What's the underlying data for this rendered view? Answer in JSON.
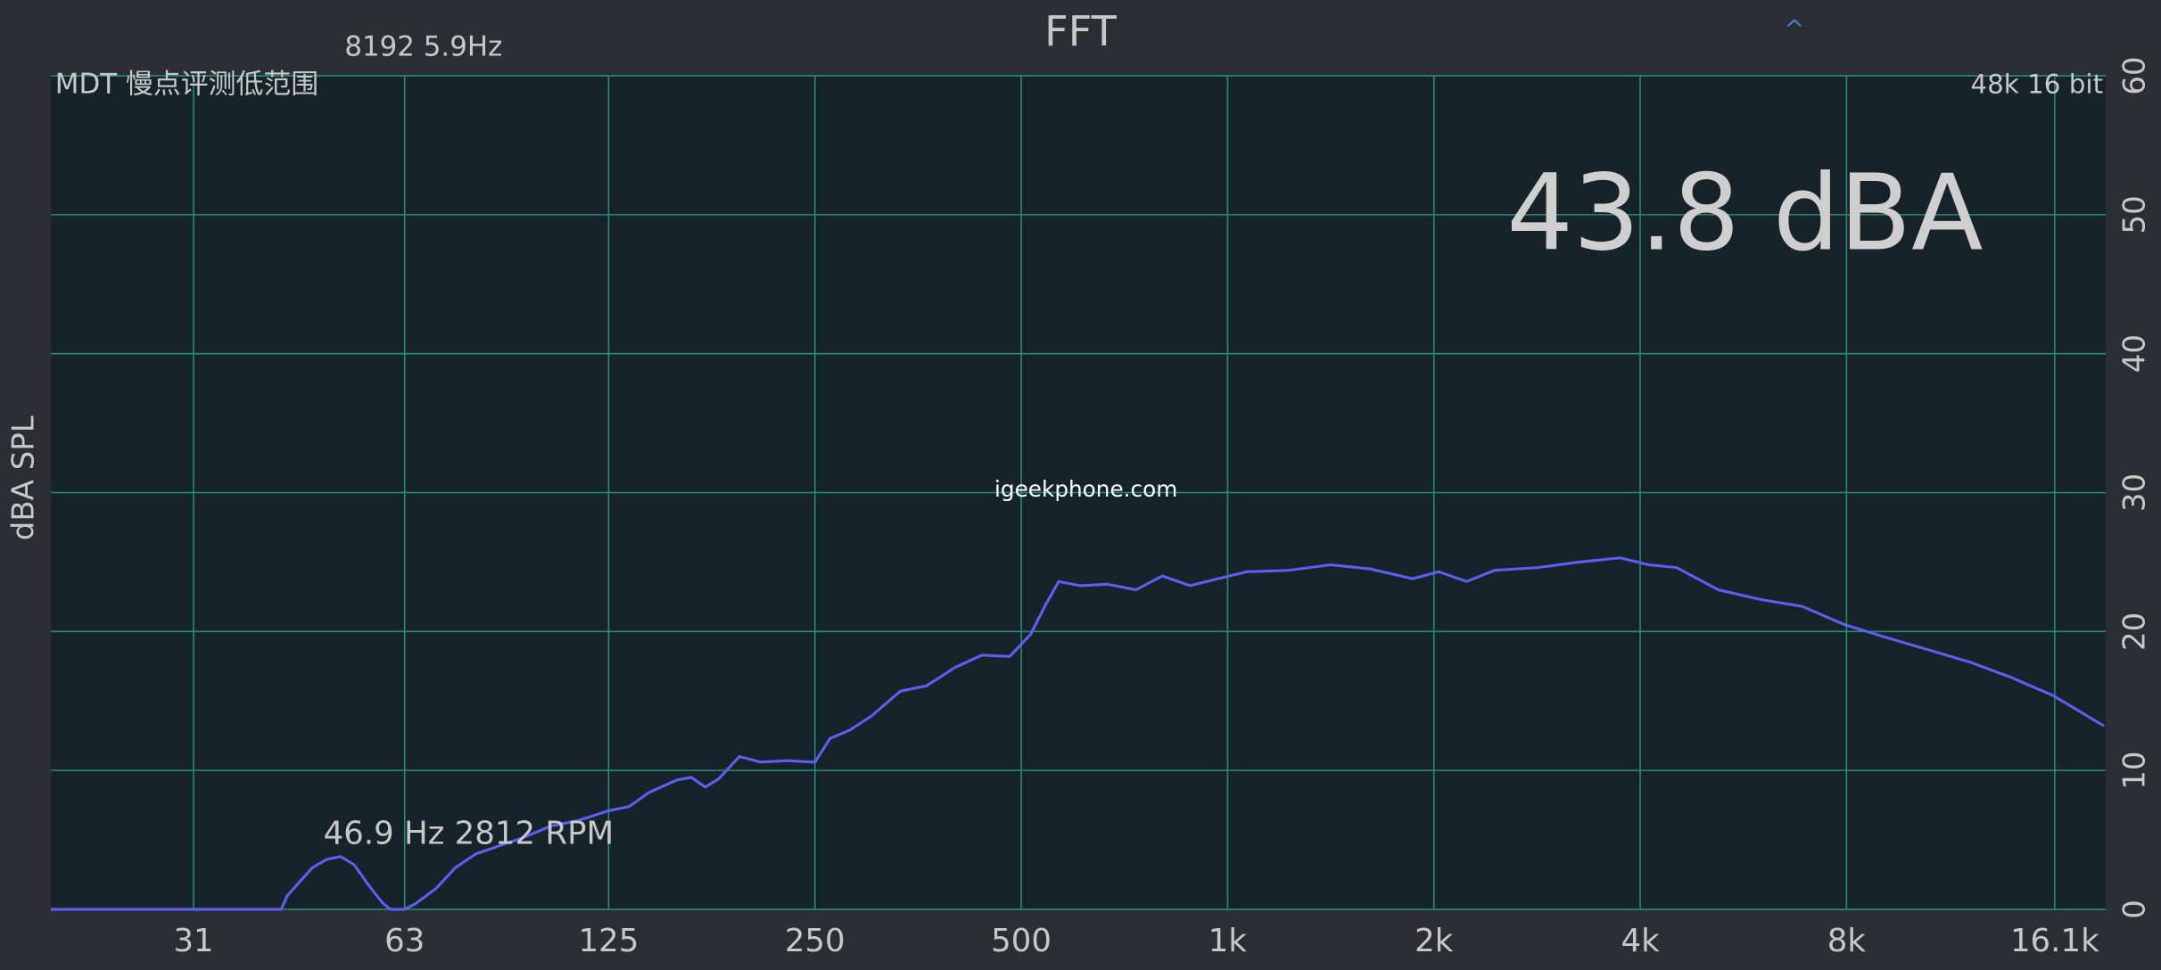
{
  "header": {
    "settings": "8192  5.9Hz",
    "title": "FFT",
    "toggle": "^"
  },
  "chart_data": {
    "type": "line",
    "title": "MDT 慢点评测低范围",
    "format": "48k 16 bit",
    "level": "43.8 dBA",
    "ylabel": "dBA SPL",
    "watermark": "igeekphone.com",
    "annotation": "46.9 Hz 2812 RPM",
    "log_x": true,
    "grid": true,
    "xlim": [
      19.2,
      19120
    ],
    "xticks": [
      31,
      63,
      125,
      250,
      500,
      {
        "value": 1000,
        "label": "1k"
      },
      {
        "value": 2000,
        "label": "2k"
      },
      {
        "value": 4000,
        "label": "4k"
      },
      {
        "value": 8000,
        "label": "8k"
      },
      {
        "value": 16100,
        "label": "16.1k"
      }
    ],
    "ylim": [
      0,
      60
    ],
    "yticks": [
      0,
      10,
      20,
      30,
      40,
      50,
      60
    ],
    "x": [
      19.2,
      41.6,
      42.5,
      46.2,
      48.5,
      50.8,
      53.2,
      55.7,
      58.4,
      60,
      63,
      65.3,
      70,
      74.7,
      80.1,
      85.8,
      94.2,
      103,
      113,
      125,
      134,
      143,
      157,
      165,
      173,
      181,
      194,
      208,
      228,
      250,
      263,
      281,
      302,
      333,
      364,
      400,
      438,
      481,
      516,
      541,
      567,
      609,
      669,
      735,
      803,
      882,
      968,
      1066,
      1227,
      1412,
      1617,
      1862,
      2032,
      2233,
      2450,
      2835,
      3260,
      3740,
      4116,
      4520,
      5200,
      6000,
      6900,
      7940,
      9100,
      10500,
      12100,
      13900,
      16000,
      19000
    ],
    "series": [
      {
        "name": "FFT",
        "color": "#5c5ff2",
        "values": [
          0,
          0,
          1,
          3,
          3.6,
          3.8,
          3.2,
          1.8,
          0.5,
          0,
          0,
          0.4,
          1.5,
          3,
          4,
          4.5,
          5.2,
          6,
          6.4,
          7.1,
          7.4,
          8.4,
          9.3,
          9.5,
          8.8,
          9.4,
          11,
          10.6,
          10.7,
          10.6,
          12.3,
          12.9,
          13.9,
          15.7,
          16.1,
          17.4,
          18.3,
          18.2,
          19.8,
          21.8,
          23.6,
          23.3,
          23.4,
          23,
          24,
          23.3,
          23.8,
          24.3,
          24.4,
          24.8,
          24.5,
          23.8,
          24.3,
          23.6,
          24.4,
          24.6,
          25,
          25.3,
          24.8,
          24.6,
          23,
          22.3,
          21.8,
          20.5,
          19.6,
          18.7,
          17.8,
          16.7,
          15.4,
          13.2
        ]
      }
    ]
  }
}
